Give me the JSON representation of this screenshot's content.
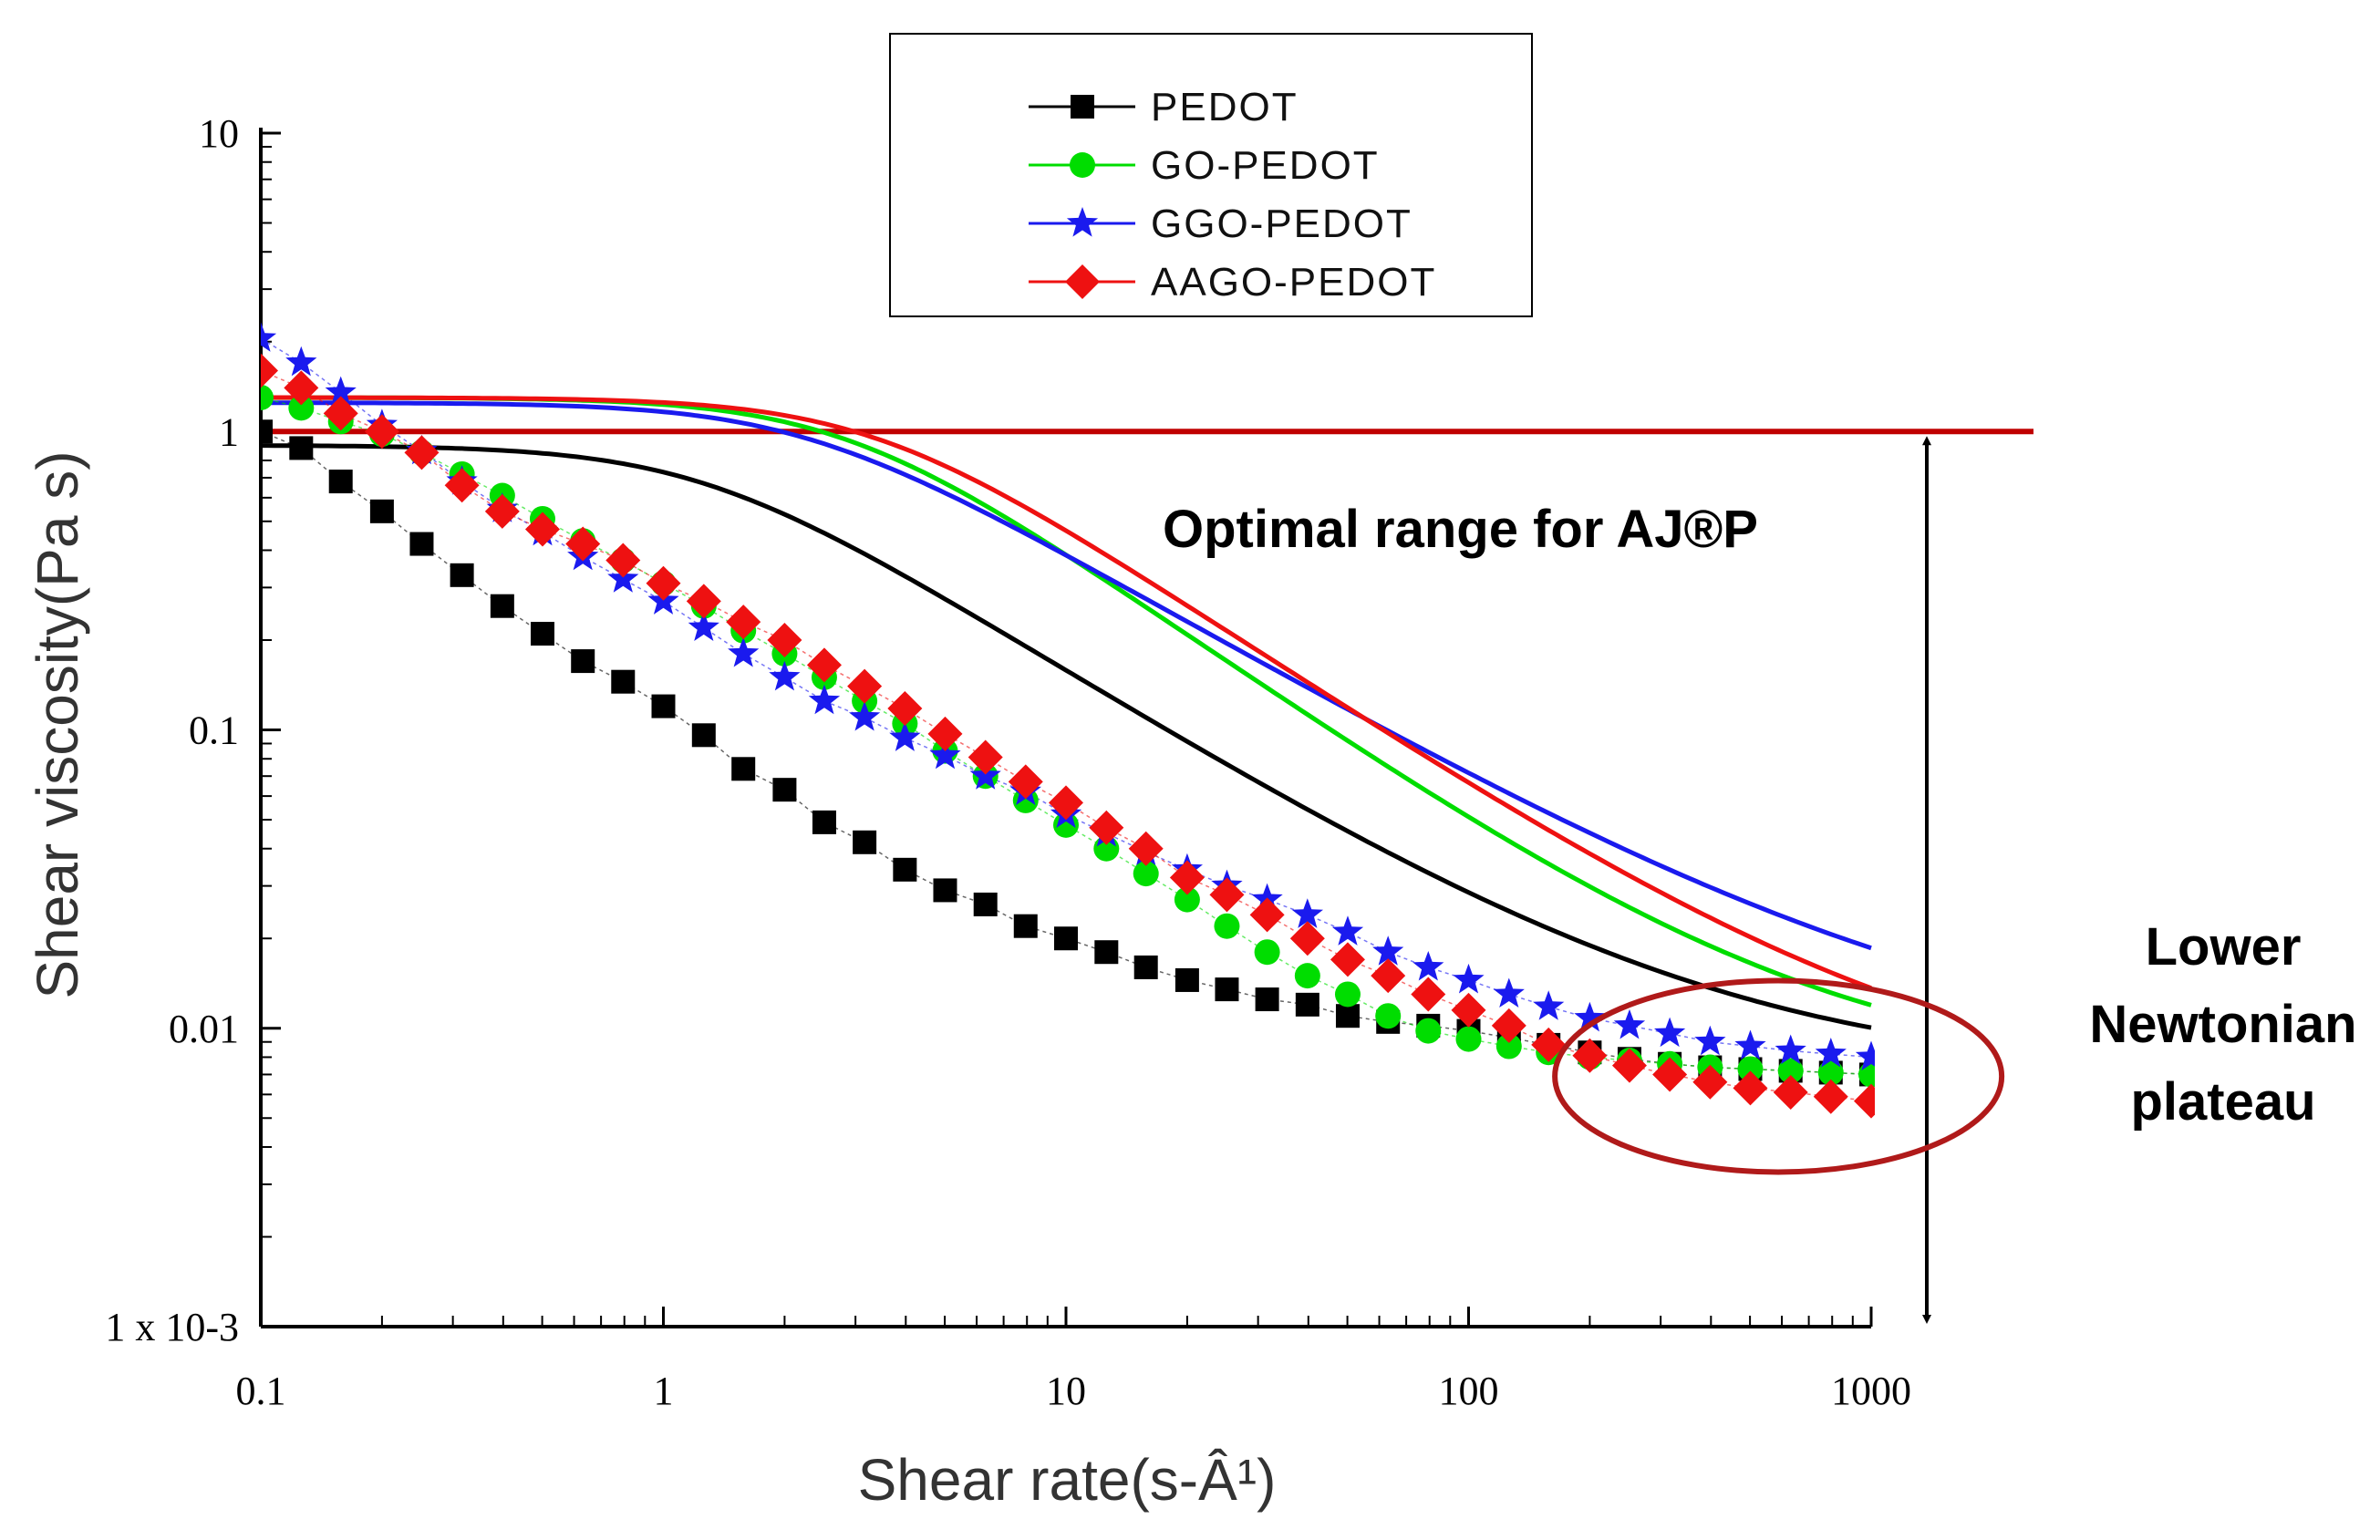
{
  "chart_data": {
    "type": "scatter",
    "xscale": "log",
    "yscale": "log",
    "xlim": [
      0.1,
      1000
    ],
    "ylim": [
      0.001,
      10
    ],
    "xlabel": "Shear rate(s-Â¹)",
    "ylabel": "Shear viscosity(Pa s)",
    "x_ticks": [
      {
        "value": 0.1,
        "label": "0.1"
      },
      {
        "value": 1,
        "label": "1"
      },
      {
        "value": 10,
        "label": "10"
      },
      {
        "value": 100,
        "label": "100"
      },
      {
        "value": 1000,
        "label": "1000"
      }
    ],
    "y_ticks": [
      {
        "value": 10,
        "label": "10"
      },
      {
        "value": 1,
        "label": "1"
      },
      {
        "value": 0.1,
        "label": "0.1"
      },
      {
        "value": 0.01,
        "label": "0.01"
      },
      {
        "value": 0.001,
        "label": "1 x 10-3"
      }
    ],
    "legend": {
      "placement": "top-center"
    },
    "series": [
      {
        "name": "PEDOT",
        "color": "#000000",
        "marker": "square",
        "x": [
          0.1,
          0.126,
          0.158,
          0.2,
          0.251,
          0.316,
          0.398,
          0.501,
          0.631,
          0.794,
          1,
          1.26,
          1.58,
          2,
          2.51,
          3.16,
          3.98,
          5.01,
          6.31,
          7.94,
          10,
          12.6,
          15.8,
          20,
          25.1,
          31.6,
          39.8,
          50.1,
          63.1,
          79.4,
          100,
          126,
          158,
          200,
          251,
          316,
          398,
          501,
          631,
          794,
          1000
        ],
        "values": [
          1.0,
          0.88,
          0.68,
          0.54,
          0.42,
          0.33,
          0.26,
          0.21,
          0.17,
          0.145,
          0.12,
          0.096,
          0.074,
          0.063,
          0.049,
          0.042,
          0.034,
          0.029,
          0.026,
          0.022,
          0.02,
          0.018,
          0.016,
          0.0145,
          0.0135,
          0.0125,
          0.012,
          0.011,
          0.0105,
          0.0102,
          0.0098,
          0.0093,
          0.0088,
          0.0083,
          0.0079,
          0.0076,
          0.0074,
          0.0073,
          0.0072,
          0.0071,
          0.007
        ],
        "fit": {
          "eta0": 0.9,
          "etainf": 0.007,
          "lambda": 0.8,
          "n": 0.15
        }
      },
      {
        "name": "GO-PEDOT",
        "color": "#00dd00",
        "marker": "circle",
        "x": [
          0.1,
          0.126,
          0.158,
          0.2,
          0.251,
          0.316,
          0.398,
          0.501,
          0.631,
          0.794,
          1,
          1.26,
          1.58,
          2,
          2.51,
          3.16,
          3.98,
          5.01,
          6.31,
          7.94,
          10,
          12.6,
          15.8,
          20,
          25.1,
          31.6,
          39.8,
          50.1,
          63.1,
          79.4,
          100,
          126,
          158,
          200,
          251,
          316,
          398,
          501,
          631,
          794,
          1000
        ],
        "values": [
          1.3,
          1.2,
          1.08,
          0.98,
          0.85,
          0.72,
          0.61,
          0.51,
          0.43,
          0.37,
          0.31,
          0.26,
          0.215,
          0.18,
          0.15,
          0.125,
          0.105,
          0.085,
          0.07,
          0.058,
          0.048,
          0.04,
          0.033,
          0.027,
          0.022,
          0.018,
          0.015,
          0.013,
          0.011,
          0.0098,
          0.0092,
          0.0087,
          0.0083,
          0.008,
          0.0078,
          0.0076,
          0.0074,
          0.0073,
          0.0072,
          0.0071,
          0.007
        ],
        "fit": {
          "eta0": 1.3,
          "etainf": 0.007,
          "lambda": 0.35,
          "n": 0.05
        }
      },
      {
        "name": "GGO-PEDOT",
        "color": "#1a1aee",
        "marker": "star",
        "x": [
          0.1,
          0.126,
          0.158,
          0.2,
          0.251,
          0.316,
          0.398,
          0.501,
          0.631,
          0.794,
          1,
          1.26,
          1.58,
          2,
          2.51,
          3.16,
          3.98,
          5.01,
          6.31,
          7.94,
          10,
          12.6,
          15.8,
          20,
          25.1,
          31.6,
          39.8,
          50.1,
          63.1,
          79.4,
          100,
          126,
          158,
          200,
          251,
          316,
          398,
          501,
          631,
          794,
          1000
        ],
        "values": [
          2.05,
          1.7,
          1.35,
          1.05,
          0.86,
          0.68,
          0.55,
          0.46,
          0.38,
          0.32,
          0.27,
          0.22,
          0.18,
          0.15,
          0.125,
          0.11,
          0.094,
          0.082,
          0.07,
          0.062,
          0.052,
          0.045,
          0.039,
          0.034,
          0.03,
          0.027,
          0.024,
          0.021,
          0.018,
          0.016,
          0.0145,
          0.013,
          0.0118,
          0.0108,
          0.0102,
          0.0096,
          0.009,
          0.0087,
          0.0084,
          0.0082,
          0.008
        ],
        "fit": {
          "eta0": 1.25,
          "etainf": 0.008,
          "lambda": 0.45,
          "n": 0.22
        }
      },
      {
        "name": "AAGO-PEDOT",
        "color": "#ee1111",
        "marker": "diamond",
        "x": [
          0.1,
          0.126,
          0.158,
          0.2,
          0.251,
          0.316,
          0.398,
          0.501,
          0.631,
          0.794,
          1,
          1.26,
          1.58,
          2,
          2.51,
          3.16,
          3.98,
          5.01,
          6.31,
          7.94,
          10,
          12.6,
          15.8,
          20,
          25.1,
          31.6,
          39.8,
          50.1,
          63.1,
          79.4,
          100,
          126,
          158,
          200,
          251,
          316,
          398,
          501,
          631,
          794,
          1000
        ],
        "values": [
          1.6,
          1.4,
          1.15,
          1.0,
          0.85,
          0.66,
          0.54,
          0.47,
          0.42,
          0.37,
          0.31,
          0.27,
          0.23,
          0.2,
          0.165,
          0.14,
          0.118,
          0.097,
          0.081,
          0.067,
          0.057,
          0.047,
          0.04,
          0.032,
          0.028,
          0.024,
          0.02,
          0.017,
          0.015,
          0.013,
          0.0115,
          0.0102,
          0.0088,
          0.0081,
          0.0075,
          0.007,
          0.0066,
          0.0063,
          0.0061,
          0.0059,
          0.0057
        ],
        "fit": {
          "eta0": 1.3,
          "etainf": 0.006,
          "lambda": 0.3,
          "n": 0.1
        }
      }
    ],
    "annotations": {
      "threshold_value": 1,
      "optimal_range_label": "Optimal range for AJ®P",
      "plateau_label_lines": [
        "Lower",
        "Newtonian",
        "plateau"
      ]
    }
  },
  "colors": {
    "threshold": "#c00000",
    "ellipse": "#b01a1a",
    "axis": "#000000"
  }
}
